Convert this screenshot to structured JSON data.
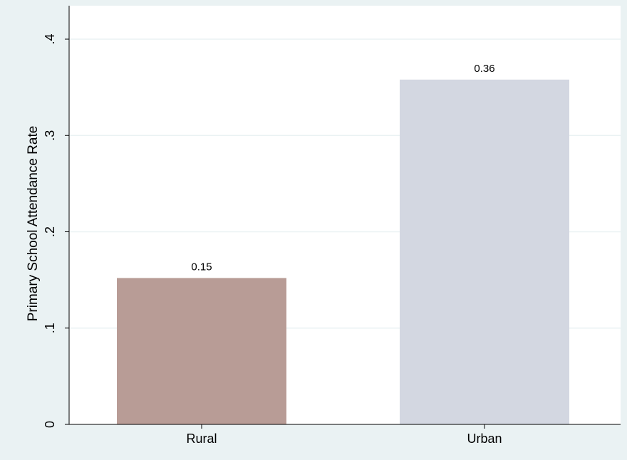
{
  "chart_data": {
    "type": "bar",
    "categories": [
      "Rural",
      "Urban"
    ],
    "values": [
      0.152,
      0.358
    ],
    "data_labels": [
      "0.15",
      "0.36"
    ],
    "title": "",
    "xlabel": "",
    "ylabel": "Primary School Attendance Rate",
    "ylim": [
      0,
      0.4
    ],
    "yticks": [
      0,
      0.1,
      0.2,
      0.3,
      0.4
    ],
    "ytick_labels": [
      "0",
      ".1",
      ".2",
      ".3",
      ".4"
    ],
    "grid": true,
    "legend": "none",
    "colors": {
      "outer_background": "#eaf2f3",
      "plot_background": "#ffffff",
      "gridline": "#eaf2f3",
      "axis": "#000000",
      "bars": [
        "#b89c96",
        "#d3d7e1"
      ]
    }
  }
}
